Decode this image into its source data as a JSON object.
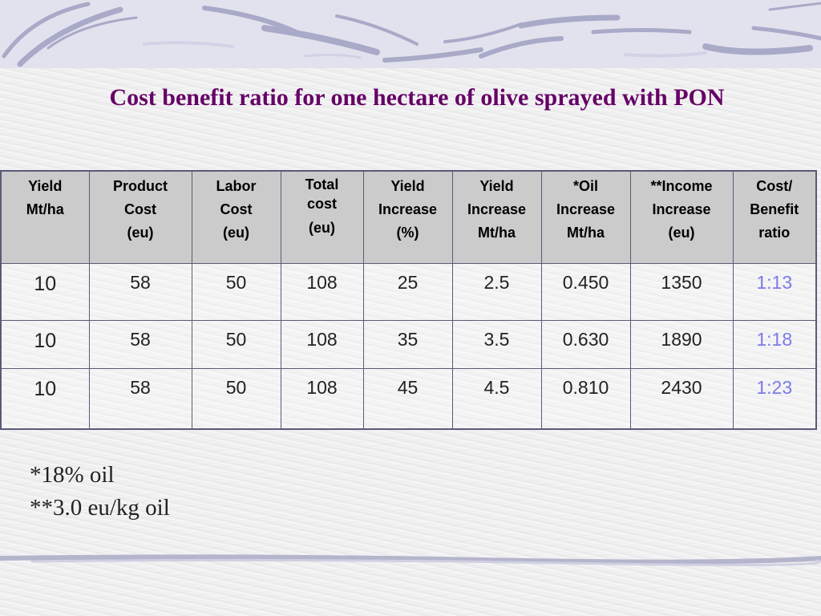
{
  "title": "Cost benefit ratio for one hectare of olive sprayed with PON",
  "table": {
    "headers": [
      [
        "Yield",
        "Mt/ha"
      ],
      [
        "Product",
        "Cost",
        "(eu)"
      ],
      [
        "Labor",
        "Cost",
        "(eu)"
      ],
      [
        "Total",
        "cost",
        "(eu)"
      ],
      [
        "Yield",
        "Increase",
        "(%)"
      ],
      [
        "Yield",
        "Increase",
        "Mt/ha"
      ],
      [
        "*Oil",
        "Increase",
        "Mt/ha"
      ],
      [
        "**Income",
        "Increase",
        "(eu)"
      ],
      [
        "Cost/",
        "Benefit",
        "ratio"
      ]
    ],
    "rows": [
      [
        "10",
        "58",
        "50",
        "108",
        "25",
        "2.5",
        "0.450",
        "1350",
        "1:13"
      ],
      [
        "10",
        "58",
        "50",
        "108",
        "35",
        "3.5",
        "0.630",
        "1890",
        "1:18"
      ],
      [
        "10",
        "58",
        "50",
        "108",
        "45",
        "4.5",
        "0.810",
        "2430",
        "1:23"
      ]
    ]
  },
  "footnotes": [
    "*18% oil",
    "**3.0 eu/kg oil"
  ],
  "colors": {
    "title": "#660066",
    "header_bg": "#cbcbcb",
    "ratio_text": "#7b7be6",
    "border": "#5a5a78",
    "banner": "#e2e2ee"
  }
}
